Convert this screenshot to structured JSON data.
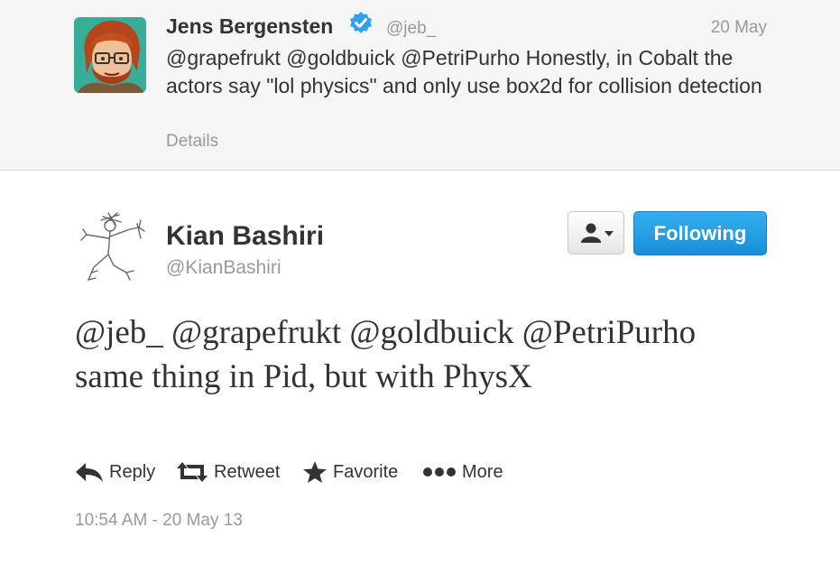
{
  "parent_tweet": {
    "author_name": "Jens Bergensten",
    "author_handle": "@jeb_",
    "date": "20 May",
    "text": "@grapefrukt @goldbuick @PetriPurho Honestly, in Cobalt the actors say \"lol physics\" and only use box2d for collision detection",
    "details_label": "Details",
    "verified_icon": "verified-badge-icon",
    "verified_color": "#2fa0ee"
  },
  "main_tweet": {
    "author_name": "Kian Bashiri",
    "author_handle": "@KianBashiri",
    "text": "@jeb_ @grapefrukt @goldbuick @PetriPurho same thing in Pid, but with PhysX",
    "follow_label": "Following",
    "follow_color": "#2aa7ec",
    "user_menu_icon": "person-dropdown-icon",
    "actions": [
      {
        "label": "Reply",
        "icon": "reply-icon"
      },
      {
        "label": "Retweet",
        "icon": "retweet-icon"
      },
      {
        "label": "Favorite",
        "icon": "star-icon"
      },
      {
        "label": "More",
        "icon": "more-dots-icon"
      }
    ],
    "timestamp": "10:54 AM - 20 May 13"
  }
}
